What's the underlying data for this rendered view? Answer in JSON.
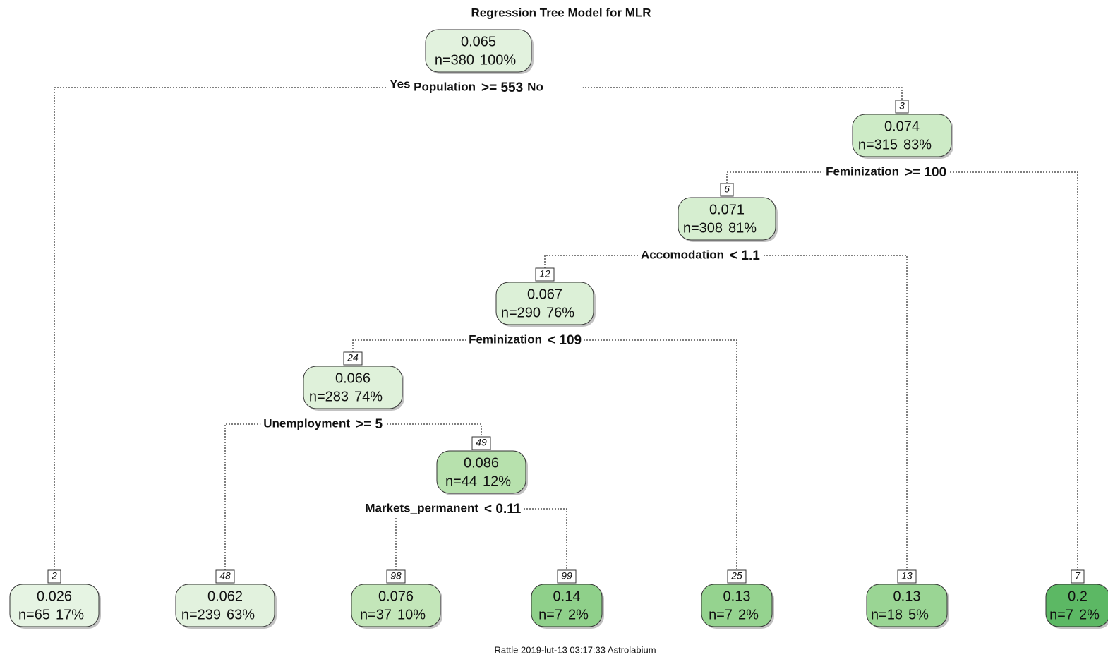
{
  "title": "Regression Tree Model for MLR",
  "footer": "Rattle 2019-lut-13 03:17:33 Astrolabium",
  "tree": {
    "value": "0.065",
    "n": "n=380",
    "pct": "100%",
    "color": "#e2f2de",
    "split": {
      "var": "Population",
      "cond": ">= 553",
      "yes_label": "Yes",
      "no_label": "No"
    },
    "yes": {
      "id": "2",
      "value": "0.026",
      "n": "n=65",
      "pct": "17%",
      "color": "#e6f4e3"
    },
    "no": {
      "id": "3",
      "value": "0.074",
      "n": "n=315",
      "pct": "83%",
      "color": "#cdebc6",
      "split": {
        "var": "Feminization",
        "cond": ">= 100"
      },
      "yes": {
        "id": "6",
        "value": "0.071",
        "n": "n=308",
        "pct": "81%",
        "color": "#d6eed0",
        "split": {
          "var": "Accomodation",
          "cond": "< 1.1"
        },
        "yes": {
          "id": "12",
          "value": "0.067",
          "n": "n=290",
          "pct": "76%",
          "color": "#dcf0d7",
          "split": {
            "var": "Feminization",
            "cond": "< 109"
          },
          "yes": {
            "id": "24",
            "value": "0.066",
            "n": "n=283",
            "pct": "74%",
            "color": "#dff1da",
            "split": {
              "var": "Unemployment",
              "cond": ">= 5"
            },
            "yes": {
              "id": "48",
              "value": "0.062",
              "n": "n=239",
              "pct": "63%",
              "color": "#e2f2de"
            },
            "no": {
              "id": "49",
              "value": "0.086",
              "n": "n=44",
              "pct": "12%",
              "color": "#b7e1ad",
              "split": {
                "var": "Markets_permanent",
                "cond": "< 0.11"
              },
              "yes": {
                "id": "98",
                "value": "0.076",
                "n": "n=37",
                "pct": "10%",
                "color": "#c3e6b9"
              },
              "no": {
                "id": "99",
                "value": "0.14",
                "n": "n=7",
                "pct": "2%",
                "color": "#8fd08a"
              }
            }
          },
          "no": {
            "id": "25",
            "value": "0.13",
            "n": "n=7",
            "pct": "2%",
            "color": "#95d38f"
          }
        },
        "no": {
          "id": "13",
          "value": "0.13",
          "n": "n=18",
          "pct": "5%",
          "color": "#9ad594"
        }
      },
      "no": {
        "id": "7",
        "value": "0.2",
        "n": "n=7",
        "pct": "2%",
        "color": "#5cb864"
      }
    }
  }
}
